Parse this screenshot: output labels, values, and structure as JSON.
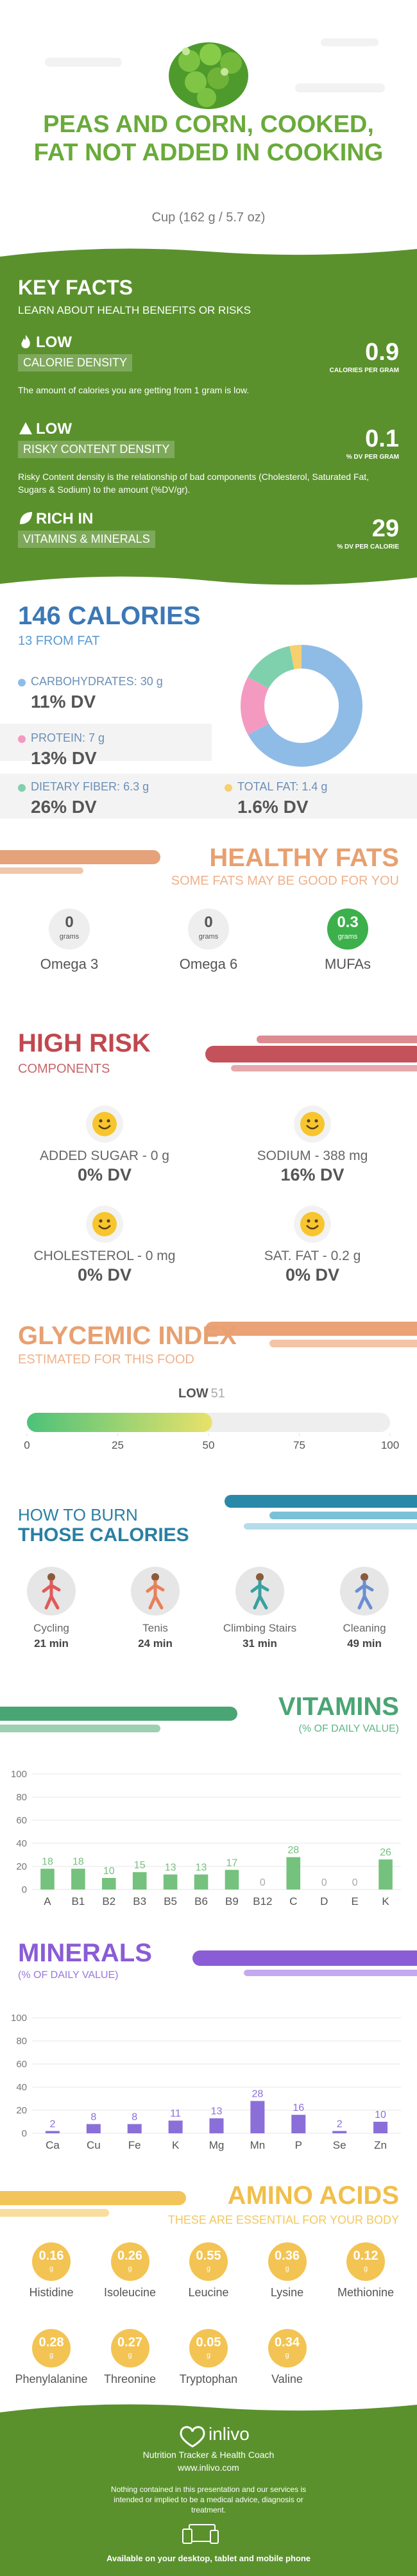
{
  "header": {
    "title": "PEAS AND CORN, COOKED, FAT NOT ADDED IN COOKING",
    "serving": "Cup (162 g / 5.7 oz)"
  },
  "key_facts": {
    "title": "KEY FACTS",
    "subtitle": "LEARN ABOUT HEALTH BENEFITS OR RISKS",
    "items": [
      {
        "level": "LOW",
        "name": "CALORIE DENSITY",
        "value": 0.9,
        "unit": "CALORIES PER GRAM",
        "description": "The amount of calories you are getting from 1 gram is low."
      },
      {
        "level": "LOW",
        "name": "RISKY CONTENT DENSITY",
        "value": 0.1,
        "unit": "% DV PER GRAM",
        "description": "Risky Content density is the relationship of bad components (Cholesterol, Saturated Fat, Sugars & Sodium) to the amount (%DV/gr)."
      },
      {
        "level": "RICH IN",
        "name": "VITAMINS & MINERALS",
        "value": 29,
        "unit": "% DV PER CALORIE"
      }
    ]
  },
  "healthy_fats": {
    "title": "HEALTHY FATS",
    "subtitle": "SOME FATS MAY BE GOOD FOR YOU",
    "unit": "grams",
    "items": [
      {
        "name": "Omega 3",
        "value": 0,
        "color": "#eeeeee"
      },
      {
        "name": "Omega 6",
        "value": 0,
        "color": "#eeeeee"
      },
      {
        "name": "MUFAs",
        "value": 0.3,
        "color": "#3cb04a"
      }
    ]
  },
  "high_risk": {
    "title": "HIGH RISK",
    "subtitle": "COMPONENTS",
    "items": [
      {
        "label": "ADDED SUGAR - 0 g",
        "dv": "0% DV"
      },
      {
        "label": "SODIUM - 388 mg",
        "dv": "16% DV"
      },
      {
        "label": "CHOLESTEROL - 0 mg",
        "dv": "0% DV"
      },
      {
        "label": "SAT. FAT - 0.2 g",
        "dv": "0% DV"
      }
    ]
  },
  "burn": {
    "title": "HOW TO BURN",
    "subtitle": "THOSE CALORIES",
    "items": [
      {
        "name": "Cycling",
        "time": "21 min"
      },
      {
        "name": "Tenis",
        "time": "24 min"
      },
      {
        "name": "Climbing Stairs",
        "time": "31 min"
      },
      {
        "name": "Cleaning",
        "time": "49 min"
      }
    ]
  },
  "amino": {
    "title": "AMINO ACIDS",
    "subtitle": "THESE ARE ESSENTIAL FOR YOUR BODY",
    "unit": "g",
    "items": [
      {
        "name": "Histidine",
        "value": 0.16
      },
      {
        "name": "Isoleucine",
        "value": 0.26
      },
      {
        "name": "Leucine",
        "value": 0.55
      },
      {
        "name": "Lysine",
        "value": 0.36
      },
      {
        "name": "Methionine",
        "value": 0.12
      },
      {
        "name": "Phenylalanine",
        "value": 0.28
      },
      {
        "name": "Threonine",
        "value": 0.27
      },
      {
        "name": "Tryptophan",
        "value": 0.05
      },
      {
        "name": "Valine",
        "value": 0.34
      }
    ]
  },
  "footer": {
    "brand": "inlivo",
    "tagline": "Nutrition Tracker & Health Coach",
    "url": "www.inlivo.com",
    "disclaimer": "Nothing contained in this presentation and our services is intended or implied to be a medical advice, diagnosis or treatment.",
    "available": "Available on your desktop, tablet and mobile phone"
  },
  "chart_data": [
    {
      "type": "pie",
      "title": "146 CALORIES",
      "subtitle": "13 FROM FAT",
      "categories": [
        "CARBOHYDRATES:",
        "PROTEIN:",
        "DIETARY FIBER:",
        "TOTAL FAT:"
      ],
      "values": [
        30,
        7,
        6.3,
        1.4
      ],
      "value_labels": [
        "30 g",
        "7 g",
        "6.3 g",
        "1.4 g"
      ],
      "dv_labels": [
        "11% DV",
        "13% DV",
        "26% DV",
        "1.6% DV"
      ],
      "colors": [
        "#8fbce6",
        "#f49ac1",
        "#7fd1ae",
        "#f6d06f"
      ]
    },
    {
      "type": "gauge",
      "title": "GLYCEMIC INDEX",
      "subtitle": "ESTIMATED FOR THIS FOOD",
      "label": "LOW",
      "value": 51,
      "xlim": [
        0,
        100
      ],
      "xticks": [
        0,
        25,
        50,
        75,
        100
      ]
    },
    {
      "type": "bar",
      "title": "VITAMINS",
      "subtitle": "(% OF DAILY VALUE)",
      "categories": [
        "A",
        "B1",
        "B2",
        "B3",
        "B5",
        "B6",
        "B9",
        "B12",
        "C",
        "D",
        "E",
        "K"
      ],
      "values": [
        18,
        18,
        10,
        15,
        13,
        13,
        17,
        0,
        28,
        0,
        0,
        26
      ],
      "color": "#74c27d",
      "ylim": [
        0,
        100
      ],
      "yticks": [
        0,
        20,
        40,
        60,
        80,
        100
      ],
      "grid": true
    },
    {
      "type": "bar",
      "title": "MINERALS",
      "subtitle": "(% OF DAILY VALUE)",
      "categories": [
        "Ca",
        "Cu",
        "Fe",
        "K",
        "Mg",
        "Mn",
        "P",
        "Se",
        "Zn"
      ],
      "values": [
        2,
        8,
        8,
        11,
        13,
        28,
        16,
        2,
        10
      ],
      "color": "#8b6fd8",
      "ylim": [
        0,
        100
      ],
      "yticks": [
        0,
        20,
        40,
        60,
        80,
        100
      ],
      "grid": true
    }
  ]
}
